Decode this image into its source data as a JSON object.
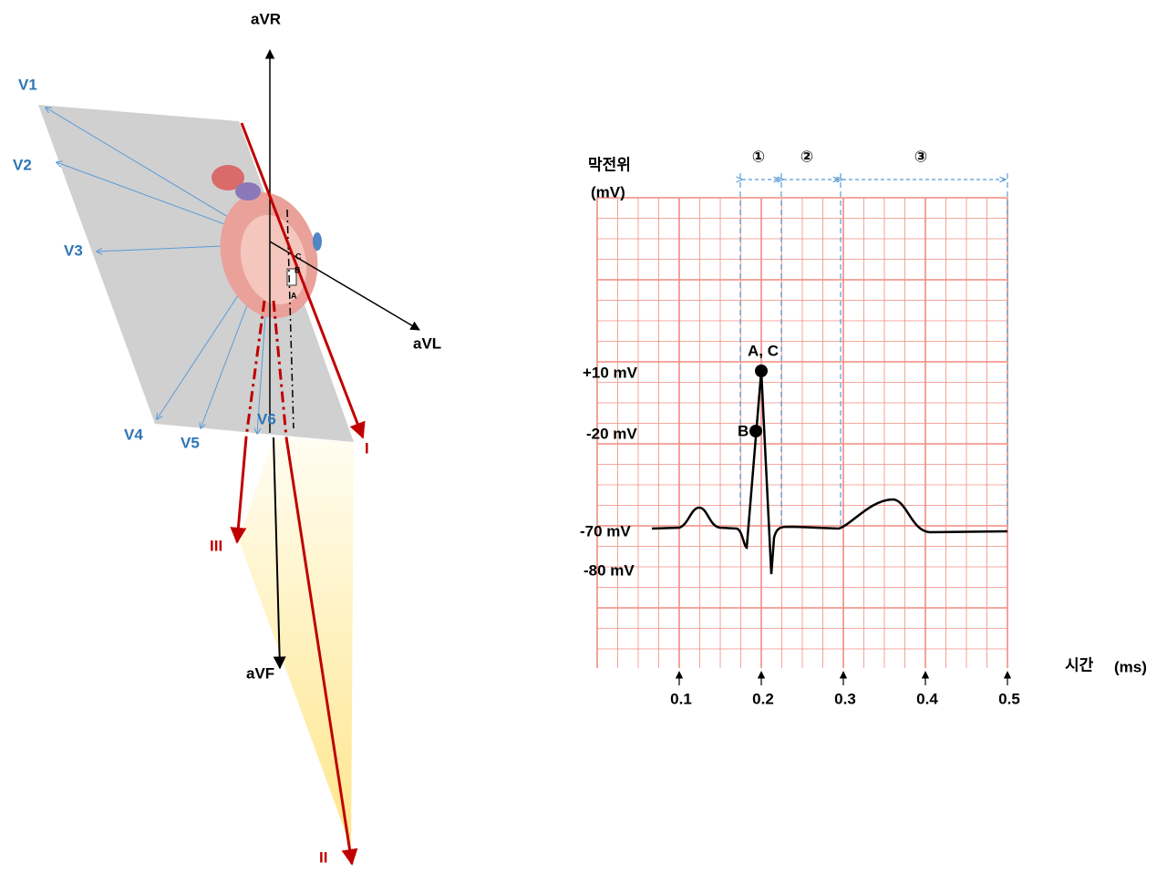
{
  "lead_diagram": {
    "limb_leads": {
      "avr": "aVR",
      "avl": "aVL",
      "avf": "aVF",
      "i": "I",
      "ii": "II",
      "iii": "III"
    },
    "chest_leads": [
      "V1",
      "V2",
      "V3",
      "V4",
      "V5",
      "V6"
    ],
    "heart_points": [
      "C",
      "B",
      "A"
    ]
  },
  "potential_graph": {
    "y_title": "막전위",
    "y_unit": "(mV)",
    "x_title": "시간",
    "x_unit": "(ms)",
    "phases": [
      "①",
      "②",
      "③"
    ],
    "y_labels": [
      "+10 mV",
      "-20 mV",
      "-70 mV",
      "-80 mV"
    ],
    "x_labels": [
      "0.1",
      "0.2",
      "0.3",
      "0.4",
      "0.5"
    ],
    "point_labels": {
      "ac": "A, C",
      "b": "B"
    }
  }
}
